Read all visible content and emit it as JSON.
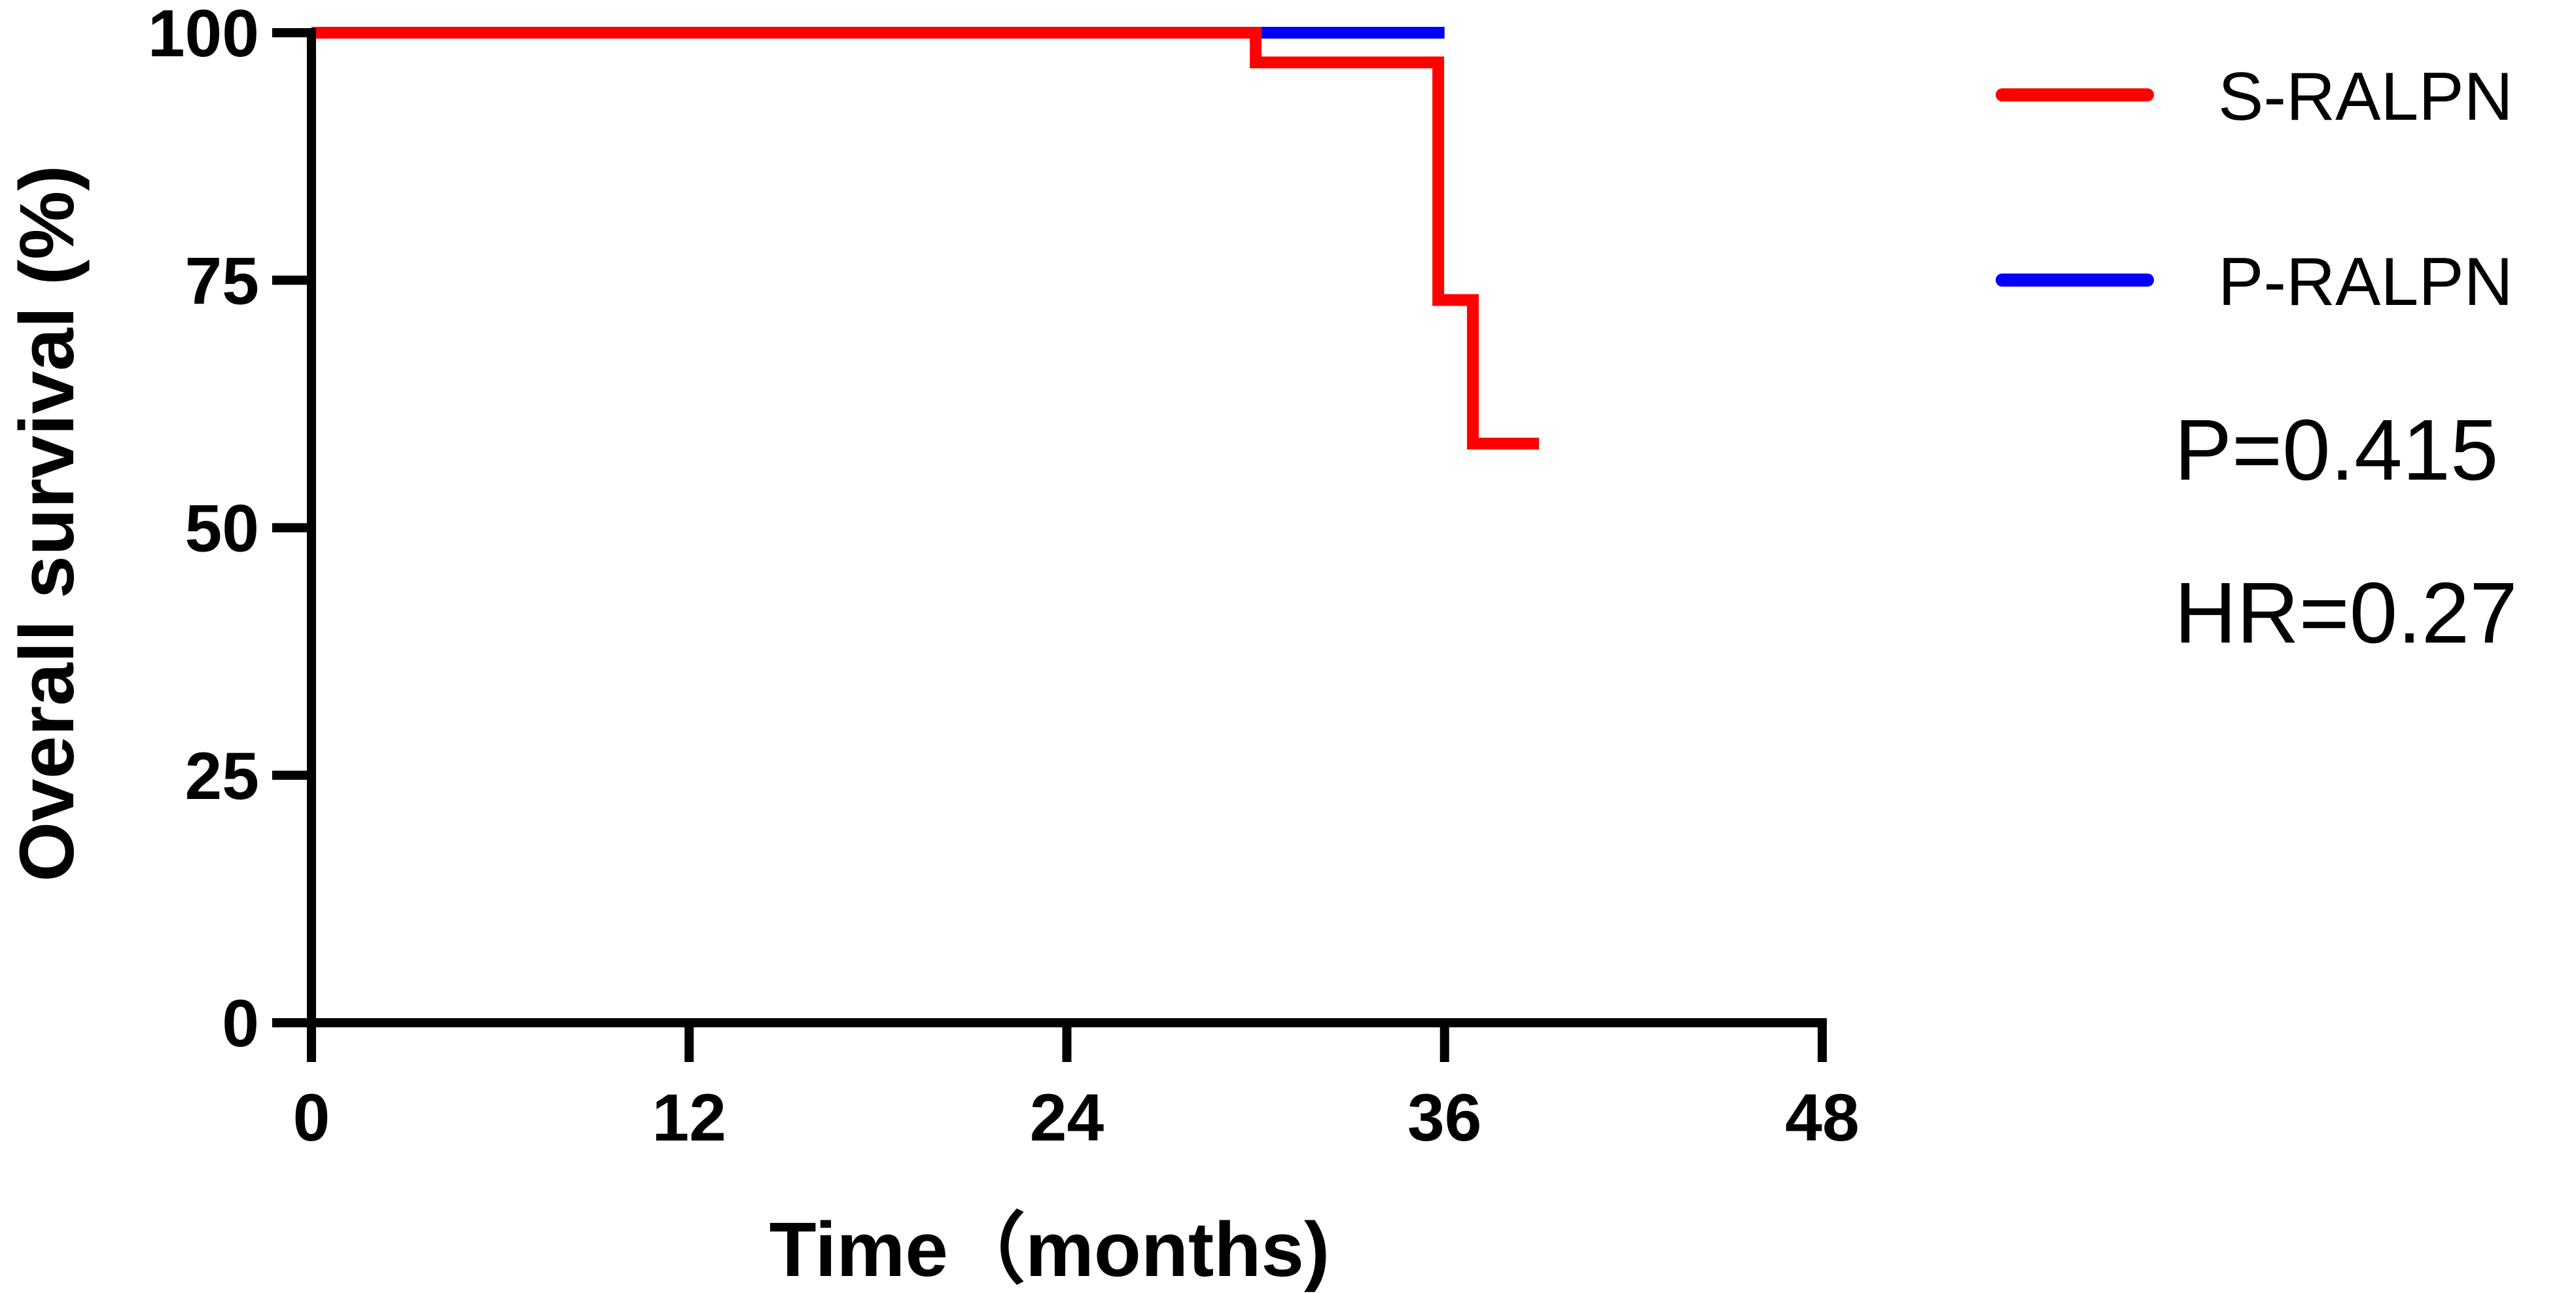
{
  "chart_data": {
    "type": "line",
    "title": "",
    "xlabel": "Time（months)",
    "ylabel": "Overall survival (%)",
    "xlim": [
      0,
      48
    ],
    "ylim": [
      0,
      100
    ],
    "x_ticks": [
      0,
      12,
      24,
      36,
      48
    ],
    "y_ticks": [
      0,
      25,
      50,
      75,
      100
    ],
    "grid": false,
    "legend_position": "top-right",
    "series": [
      {
        "name": "S-RALPN",
        "color": "#ff0000",
        "step": true,
        "points": [
          {
            "x": 0,
            "y": 100
          },
          {
            "x": 30,
            "y": 100
          },
          {
            "x": 30,
            "y": 97
          },
          {
            "x": 35.8,
            "y": 97
          },
          {
            "x": 35.8,
            "y": 73
          },
          {
            "x": 36.9,
            "y": 73
          },
          {
            "x": 36.9,
            "y": 58.5
          },
          {
            "x": 39,
            "y": 58.5
          }
        ]
      },
      {
        "name": "P-RALPN",
        "color": "#0000ff",
        "step": true,
        "points": [
          {
            "x": 30,
            "y": 100
          },
          {
            "x": 36,
            "y": 100
          }
        ]
      }
    ],
    "annotations": [
      "P=0.415",
      "HR=0.27"
    ]
  }
}
